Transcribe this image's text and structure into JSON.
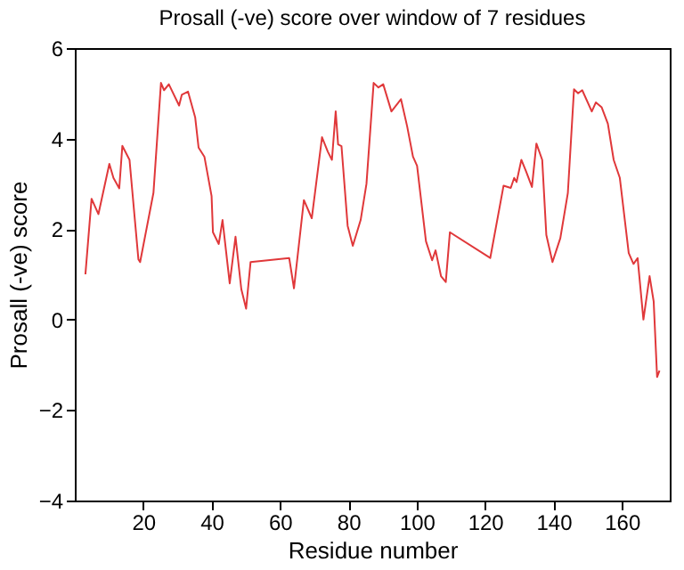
{
  "chart_data": {
    "type": "line",
    "title": "Prosall (-ve) score over window of 7 residues",
    "xlabel": "Residue number",
    "ylabel": "Prosall (-ve) score",
    "x": [
      3.1,
      4.9,
      6.9,
      10.1,
      11.3,
      13.0,
      13.9,
      16.0,
      18.6,
      19.1,
      23.0,
      25.2,
      26.1,
      27.5,
      30.5,
      31.3,
      33.1,
      35.2,
      36.2,
      37.9,
      40.0,
      40.4,
      42.1,
      43.2,
      45.3,
      47.0,
      48.7,
      50.1,
      51.4,
      62.7,
      64.1,
      67.0,
      69.3,
      72.3,
      74.0,
      75.2,
      76.3,
      77.0,
      78.0,
      79.8,
      81.3,
      83.6,
      85.3,
      87.4,
      88.8,
      90.2,
      92.6,
      95.4,
      97.2,
      98.9,
      100.1,
      102.7,
      104.5,
      105.5,
      107.1,
      108.5,
      109.7,
      121.5,
      125.4,
      127.5,
      128.5,
      129.2,
      130.6,
      132.0,
      133.7,
      135.0,
      136.7,
      137.9,
      139.7,
      142.0,
      144.2,
      146.0,
      147.2,
      148.4,
      151.2,
      152.4,
      154.1,
      155.9,
      157.6,
      159.4,
      162.0,
      163.4,
      164.6,
      166.3,
      168.1,
      169.3,
      170.3,
      171.0
    ],
    "series": [
      {
        "color": "#e0383a",
        "values": [
          1.0,
          2.67,
          2.33,
          3.44,
          3.13,
          2.9,
          3.84,
          3.53,
          1.33,
          1.27,
          2.8,
          5.23,
          5.07,
          5.2,
          4.73,
          4.97,
          5.04,
          4.47,
          3.8,
          3.6,
          2.73,
          1.93,
          1.67,
          2.2,
          0.8,
          1.83,
          0.67,
          0.24,
          1.27,
          1.36,
          0.69,
          2.64,
          2.24,
          4.03,
          3.71,
          3.53,
          4.6,
          3.87,
          3.83,
          2.07,
          1.63,
          2.2,
          3.0,
          5.23,
          5.13,
          5.2,
          4.6,
          4.87,
          4.27,
          3.6,
          3.4,
          1.73,
          1.31,
          1.53,
          0.96,
          0.83,
          1.93,
          1.36,
          2.96,
          2.91,
          3.13,
          3.04,
          3.53,
          3.27,
          2.93,
          3.89,
          3.53,
          1.87,
          1.27,
          1.8,
          2.8,
          5.09,
          5.0,
          5.07,
          4.6,
          4.8,
          4.69,
          4.33,
          3.53,
          3.13,
          1.47,
          1.23,
          1.36,
          0.0,
          0.96,
          0.4,
          -1.27,
          -1.13
        ]
      }
    ],
    "xlim": [
      0,
      174
    ],
    "xticks": [
      20,
      40,
      60,
      80,
      100,
      120,
      140,
      160
    ],
    "ylim": [
      -4,
      6
    ],
    "yticks": [
      -4,
      -2,
      0,
      2,
      4,
      6
    ],
    "grid": false,
    "marker": "none",
    "line_style": "solid"
  }
}
